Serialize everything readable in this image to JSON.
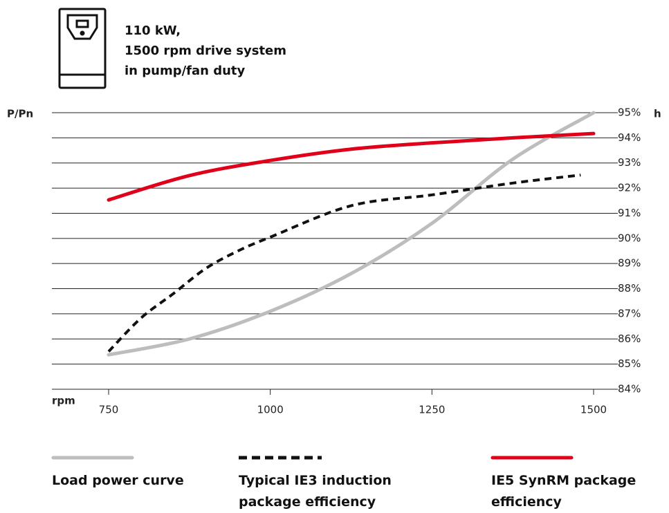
{
  "chart_data": {
    "type": "line",
    "title_lines": [
      "110 kW,",
      "1500 rpm drive system",
      "in pump/fan duty"
    ],
    "y_label": "P/Pn",
    "y2_label": "h",
    "x_label": "rpm",
    "xlim": [
      660,
      1530
    ],
    "xticks": [
      750,
      1000,
      1250,
      1500
    ],
    "ylim": [
      84,
      95
    ],
    "yticks": [
      {
        "value": 84,
        "label": "84%"
      },
      {
        "value": 85,
        "label": "85%"
      },
      {
        "value": 86,
        "label": "86%"
      },
      {
        "value": 87,
        "label": "87%"
      },
      {
        "value": 88,
        "label": "88%"
      },
      {
        "value": 89,
        "label": "89%"
      },
      {
        "value": 90,
        "label": "90%"
      },
      {
        "value": 91,
        "label": "91%"
      },
      {
        "value": 92,
        "label": "92%"
      },
      {
        "value": 93,
        "label": "93%"
      },
      {
        "value": 94,
        "label": "94%"
      },
      {
        "value": 95,
        "label": "95%"
      }
    ],
    "grid": true,
    "series": [
      {
        "name": "Load power curve",
        "color": "#bdbdbd",
        "dash": false,
        "x": [
          750,
          875,
          1000,
          1125,
          1250,
          1375,
          1500
        ],
        "values": [
          85.37,
          86.0,
          87.1,
          88.6,
          90.6,
          93.15,
          95.0
        ]
      },
      {
        "name": "Typical IE3 induction package efficiency",
        "color": "#111111",
        "dash": true,
        "x": [
          750,
          800,
          850,
          900,
          950,
          1000,
          1125,
          1250,
          1375,
          1480
        ],
        "values": [
          85.5,
          86.83,
          87.8,
          88.8,
          89.5,
          90.05,
          91.3,
          91.73,
          92.2,
          92.52
        ]
      },
      {
        "name": "IE5 SynRM package efficiency",
        "color": "#e1001a",
        "dash": false,
        "x": [
          750,
          875,
          1000,
          1125,
          1250,
          1375,
          1500
        ],
        "values": [
          91.53,
          92.5,
          93.1,
          93.55,
          93.8,
          94.0,
          94.17
        ]
      }
    ]
  }
}
